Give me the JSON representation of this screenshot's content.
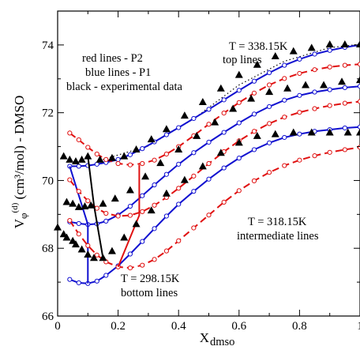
{
  "chart_data": {
    "type": "line",
    "title": "",
    "xlabel": "X",
    "xlabel_sub": "dmso",
    "ylabel": {
      "v": "V",
      "phi": "φ",
      "sup": "(d)",
      "rest": " (cm³/mol)  - DMSO"
    },
    "xlim": [
      0,
      1
    ],
    "ylim": [
      66,
      75
    ],
    "xticks": [
      0,
      0.2,
      0.4,
      0.6,
      0.8,
      1
    ],
    "xtick_labels": [
      "0",
      "0.2",
      "0.4",
      "0.6",
      "0.8",
      "1"
    ],
    "yticks": [
      66,
      68,
      70,
      72,
      74
    ],
    "ytick_labels": [
      "66",
      "68",
      "70",
      "72",
      "74"
    ],
    "grid": false,
    "annotations": [
      "red lines - P2",
      "blue lines - P1",
      "black - experimental data",
      "T = 338.15K",
      "top lines",
      "T = 318.15K",
      "intermediate lines",
      "T = 298.15K",
      "bottom lines"
    ],
    "colors": {
      "P1": "#1010d0",
      "P2": "#e01010",
      "experimental": "#000000"
    },
    "series": [
      {
        "group": "P1",
        "curves": [
          {
            "x": [
              0.04,
              0.07,
              0.1,
              0.13,
              0.16,
              0.2,
              0.24,
              0.28,
              0.32,
              0.36,
              0.4,
              0.45,
              0.5,
              0.55,
              0.6,
              0.65,
              0.7,
              0.75,
              0.8,
              0.85,
              0.9,
              0.95,
              1.0
            ],
            "y": [
              70.42,
              70.42,
              70.44,
              70.48,
              70.53,
              70.62,
              70.76,
              70.94,
              71.14,
              71.35,
              71.56,
              71.83,
              72.1,
              72.38,
              72.66,
              72.93,
              73.18,
              73.4,
              73.58,
              73.73,
              73.84,
              73.93,
              74.0
            ]
          },
          {
            "x": [
              0.04,
              0.07,
              0.1,
              0.13,
              0.16,
              0.2,
              0.24,
              0.28,
              0.32,
              0.36,
              0.4,
              0.45,
              0.5,
              0.55,
              0.6,
              0.65,
              0.7,
              0.75,
              0.8,
              0.85,
              0.9,
              0.95,
              1.0
            ],
            "y": [
              68.78,
              68.73,
              68.7,
              68.72,
              68.8,
              68.98,
              69.24,
              69.55,
              69.87,
              70.18,
              70.48,
              70.82,
              71.13,
              71.42,
              71.7,
              71.96,
              72.18,
              72.37,
              72.51,
              72.61,
              72.68,
              72.74,
              72.78
            ]
          },
          {
            "x": [
              0.04,
              0.07,
              0.1,
              0.13,
              0.16,
              0.2,
              0.24,
              0.28,
              0.32,
              0.36,
              0.4,
              0.45,
              0.5,
              0.55,
              0.6,
              0.65,
              0.7,
              0.75,
              0.8,
              0.85,
              0.9,
              0.95,
              1.0
            ],
            "y": [
              67.08,
              66.98,
              66.96,
              67.03,
              67.2,
              67.48,
              67.83,
              68.2,
              68.58,
              68.95,
              69.3,
              69.68,
              70.04,
              70.37,
              70.66,
              70.91,
              71.11,
              71.27,
              71.37,
              71.45,
              71.5,
              71.55,
              71.58
            ]
          }
        ],
        "connector": {
          "x": [
            0.04,
            0.1,
            0.1
          ],
          "y": [
            70.42,
            68.7,
            66.96
          ]
        }
      },
      {
        "group": "P2",
        "curves": [
          {
            "x": [
              0.04,
              0.07,
              0.1,
              0.13,
              0.16,
              0.2,
              0.24,
              0.28,
              0.32,
              0.36,
              0.4,
              0.45,
              0.5,
              0.55,
              0.6,
              0.65,
              0.7,
              0.75,
              0.8,
              0.85,
              0.9,
              0.95,
              1.0
            ],
            "y": [
              71.4,
              71.2,
              70.98,
              70.78,
              70.62,
              70.5,
              70.46,
              70.5,
              70.6,
              70.78,
              71.0,
              71.32,
              71.66,
              71.99,
              72.3,
              72.58,
              72.82,
              73.01,
              73.16,
              73.27,
              73.35,
              73.4,
              73.43
            ]
          },
          {
            "x": [
              0.04,
              0.07,
              0.1,
              0.13,
              0.16,
              0.2,
              0.24,
              0.28,
              0.32,
              0.36,
              0.4,
              0.45,
              0.5,
              0.55,
              0.6,
              0.65,
              0.7,
              0.75,
              0.8,
              0.85,
              0.9,
              0.95,
              1.0
            ],
            "y": [
              70.02,
              69.68,
              69.4,
              69.18,
              69.03,
              68.95,
              68.97,
              69.08,
              69.27,
              69.5,
              69.77,
              70.13,
              70.5,
              70.85,
              71.17,
              71.45,
              71.68,
              71.87,
              72.01,
              72.12,
              72.21,
              72.28,
              72.33
            ]
          },
          {
            "x": [
              0.04,
              0.07,
              0.1,
              0.13,
              0.16,
              0.2,
              0.24,
              0.28,
              0.32,
              0.36,
              0.4,
              0.45,
              0.5,
              0.55,
              0.6,
              0.65,
              0.7,
              0.75,
              0.8,
              0.85,
              0.9,
              0.95,
              1.0
            ],
            "y": [
              68.82,
              68.42,
              68.08,
              67.8,
              67.6,
              67.45,
              67.42,
              67.5,
              67.67,
              67.92,
              68.22,
              68.6,
              68.98,
              69.36,
              69.7,
              69.99,
              70.24,
              70.44,
              70.6,
              70.73,
              70.83,
              70.91,
              70.98
            ]
          }
        ],
        "connector": {
          "x": [
            0.2,
            0.27,
            0.27
          ],
          "y": [
            67.45,
            68.97,
            70.46
          ]
        }
      },
      {
        "group": "experimental",
        "points": {
          "x": [
            0.02,
            0.04,
            0.06,
            0.08,
            0.1,
            0.14,
            0.18,
            0.22,
            0.26,
            0.31,
            0.36,
            0.42,
            0.48,
            0.54,
            0.6,
            0.66,
            0.72,
            0.78,
            0.84,
            0.9,
            0.95,
            1.0,
            0.03,
            0.05,
            0.07,
            0.09,
            0.11,
            0.15,
            0.19,
            0.24,
            0.29,
            0.34,
            0.4,
            0.46,
            0.52,
            0.58,
            0.64,
            0.7,
            0.76,
            0.82,
            0.88,
            0.94,
            1.0,
            0.0,
            0.02,
            0.03,
            0.05,
            0.06,
            0.08,
            0.1,
            0.12,
            0.15,
            0.18,
            0.22,
            0.26,
            0.31,
            0.36,
            0.42,
            0.48,
            0.54,
            0.6,
            0.66,
            0.72,
            0.78,
            0.84,
            0.9,
            0.96,
            1.0
          ],
          "y": [
            70.72,
            70.62,
            70.57,
            70.62,
            70.72,
            70.62,
            70.67,
            70.72,
            70.92,
            71.22,
            71.52,
            71.92,
            72.32,
            72.72,
            73.12,
            73.42,
            73.67,
            73.82,
            73.92,
            74.02,
            74.02,
            74.02,
            69.37,
            69.32,
            69.22,
            69.24,
            69.27,
            69.32,
            69.47,
            69.72,
            70.12,
            70.52,
            70.92,
            71.32,
            71.72,
            72.12,
            72.42,
            72.62,
            72.72,
            72.82,
            72.82,
            72.92,
            72.97,
            68.62,
            68.42,
            68.32,
            68.22,
            68.12,
            67.97,
            67.82,
            67.72,
            67.72,
            67.92,
            68.32,
            68.72,
            69.12,
            69.62,
            70.02,
            70.42,
            70.82,
            71.12,
            71.32,
            71.37,
            71.42,
            71.42,
            71.42,
            71.42,
            71.42
          ]
        },
        "connector": {
          "x": [
            0.1,
            0.12,
            0.15
          ],
          "y": [
            70.72,
            69.27,
            67.72
          ]
        }
      }
    ],
    "reference_dotted": {
      "x": [
        0.15,
        0.3,
        0.45,
        0.6,
        0.75,
        0.9,
        1.0
      ],
      "y": [
        70.62,
        71.02,
        71.82,
        72.82,
        73.52,
        73.92,
        74.02
      ]
    }
  }
}
